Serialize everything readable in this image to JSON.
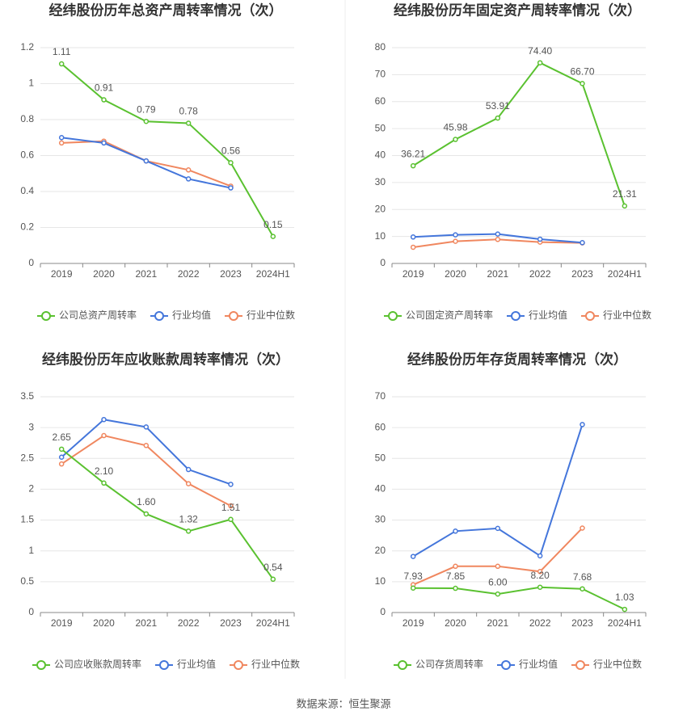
{
  "source": "数据来源：恒生聚源",
  "chart_data": [
    {
      "type": "line",
      "title": "经纬股份历年总资产周转率情况（次）",
      "categories": [
        "2019",
        "2020",
        "2021",
        "2022",
        "2023",
        "2024H1"
      ],
      "ylim": [
        0,
        1.2
      ],
      "yticks": [
        0,
        0.2,
        0.4,
        0.6,
        0.8,
        1,
        1.2
      ],
      "grid": true,
      "series": [
        {
          "name": "公司总资产周转率",
          "color": "#5ac130",
          "values": [
            1.11,
            0.91,
            0.79,
            0.78,
            0.56,
            0.15
          ],
          "value_labels": [
            "1.11",
            "0.91",
            "0.79",
            "0.78",
            "0.56",
            "0.15"
          ]
        },
        {
          "name": "行业均值",
          "color": "#4476db",
          "values": [
            0.7,
            0.67,
            0.57,
            0.47,
            0.42,
            null
          ]
        },
        {
          "name": "行业中位数",
          "color": "#f0875f",
          "values": [
            0.67,
            0.68,
            0.57,
            0.52,
            0.43,
            null
          ]
        }
      ]
    },
    {
      "type": "line",
      "title": "经纬股份历年固定资产周转率情况（次）",
      "categories": [
        "2019",
        "2020",
        "2021",
        "2022",
        "2023",
        "2024H1"
      ],
      "ylim": [
        0,
        80
      ],
      "yticks": [
        0,
        10,
        20,
        30,
        40,
        50,
        60,
        70,
        80
      ],
      "grid": true,
      "series": [
        {
          "name": "公司固定资产周转率",
          "color": "#5ac130",
          "values": [
            36.21,
            45.98,
            53.91,
            74.4,
            66.7,
            21.31
          ],
          "value_labels": [
            "36.21",
            "45.98",
            "53.91",
            "74.40",
            "66.70",
            "21.31"
          ]
        },
        {
          "name": "行业均值",
          "color": "#4476db",
          "values": [
            9.8,
            10.6,
            10.9,
            9.0,
            7.7,
            null
          ]
        },
        {
          "name": "行业中位数",
          "color": "#f0875f",
          "values": [
            6.0,
            8.2,
            8.9,
            7.9,
            7.6,
            null
          ]
        }
      ]
    },
    {
      "type": "line",
      "title": "经纬股份历年应收账款周转率情况（次）",
      "categories": [
        "2019",
        "2020",
        "2021",
        "2022",
        "2023",
        "2024H1"
      ],
      "ylim": [
        0,
        3.5
      ],
      "yticks": [
        0,
        0.5,
        1,
        1.5,
        2,
        2.5,
        3,
        3.5
      ],
      "grid": true,
      "series": [
        {
          "name": "公司应收账款周转率",
          "color": "#5ac130",
          "values": [
            2.65,
            2.1,
            1.6,
            1.32,
            1.51,
            0.54
          ],
          "value_labels": [
            "2.65",
            "2.10",
            "1.60",
            "1.32",
            "1.51",
            "0.54"
          ]
        },
        {
          "name": "行业均值",
          "color": "#4476db",
          "values": [
            2.52,
            3.13,
            3.01,
            2.32,
            2.08,
            null
          ]
        },
        {
          "name": "行业中位数",
          "color": "#f0875f",
          "values": [
            2.41,
            2.87,
            2.71,
            2.09,
            1.73,
            null
          ]
        }
      ]
    },
    {
      "type": "line",
      "title": "经纬股份历年存货周转率情况（次）",
      "categories": [
        "2019",
        "2020",
        "2021",
        "2022",
        "2023",
        "2024H1"
      ],
      "ylim": [
        0,
        70
      ],
      "yticks": [
        0,
        10,
        20,
        30,
        40,
        50,
        60,
        70
      ],
      "grid": true,
      "series": [
        {
          "name": "公司存货周转率",
          "color": "#5ac130",
          "values": [
            7.93,
            7.85,
            6.0,
            8.2,
            7.68,
            1.03
          ],
          "value_labels": [
            "7.93",
            "7.85",
            "6.00",
            "8.20",
            "7.68",
            "1.03"
          ]
        },
        {
          "name": "行业均值",
          "color": "#4476db",
          "values": [
            18.2,
            26.4,
            27.3,
            18.4,
            61.0,
            null
          ]
        },
        {
          "name": "行业中位数",
          "color": "#f0875f",
          "values": [
            9.0,
            15.0,
            15.0,
            13.3,
            27.4,
            null
          ]
        }
      ]
    }
  ]
}
